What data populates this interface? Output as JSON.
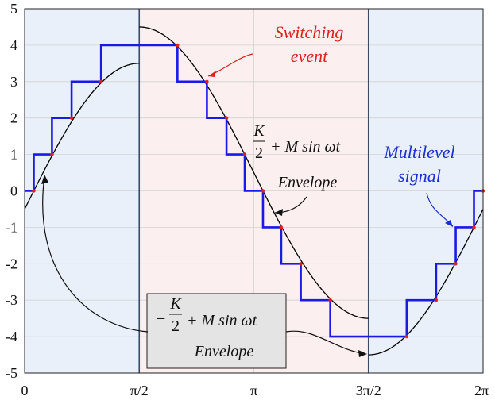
{
  "chart_data": {
    "type": "line",
    "title": "",
    "xlabel": "",
    "ylabel": "",
    "xlim": [
      0,
      6.2832
    ],
    "ylim": [
      -5,
      5
    ],
    "xticks": [
      {
        "value": 0,
        "label": "0"
      },
      {
        "value": 1.5708,
        "label": "π/2"
      },
      {
        "value": 3.1416,
        "label": "π"
      },
      {
        "value": 4.7124,
        "label": "3π/2"
      },
      {
        "value": 6.2832,
        "label": "2π"
      }
    ],
    "yticks": [
      5,
      4,
      3,
      2,
      1,
      0,
      -1,
      -2,
      -3,
      -4,
      -5
    ],
    "ytick_labels": [
      "5",
      "4",
      "3",
      "2",
      "1",
      "0",
      "-1",
      "-2",
      "-3",
      "-4",
      "-5"
    ],
    "grid": true,
    "regions": [
      {
        "x0": 0,
        "x1": 1.5708,
        "color": "#eaf0f9"
      },
      {
        "x0": 1.5708,
        "x1": 4.7124,
        "color": "#fbefef"
      },
      {
        "x0": 4.7124,
        "x1": 6.2832,
        "color": "#eaf0f9"
      }
    ],
    "envelope": {
      "color": "#000000",
      "segments": [
        {
          "x0": 0,
          "x1": 1.5708,
          "offset": -0.5,
          "amplitude": 4
        },
        {
          "x0": 1.5708,
          "x1": 4.7124,
          "offset": 0.5,
          "amplitude": 4
        },
        {
          "x0": 4.7124,
          "x1": 6.2832,
          "offset": -0.5,
          "amplitude": 4
        }
      ]
    },
    "step_signal": {
      "color": "#1a1ae6",
      "points": [
        [
          0,
          0
        ],
        [
          0.125,
          0
        ],
        [
          0.125,
          1
        ],
        [
          0.375,
          1
        ],
        [
          0.375,
          2
        ],
        [
          0.6435,
          2
        ],
        [
          0.6435,
          3
        ],
        [
          1.0472,
          3
        ],
        [
          1.0472,
          4
        ],
        [
          2.0944,
          4
        ],
        [
          2.0944,
          3
        ],
        [
          2.4981,
          3
        ],
        [
          2.4981,
          2
        ],
        [
          2.7667,
          2
        ],
        [
          2.7667,
          1
        ],
        [
          3.0165,
          1
        ],
        [
          3.0165,
          0
        ],
        [
          3.2667,
          0
        ],
        [
          3.2667,
          -1
        ],
        [
          3.5165,
          -1
        ],
        [
          3.5165,
          -2
        ],
        [
          3.7851,
          -2
        ],
        [
          3.7851,
          -3
        ],
        [
          4.1888,
          -3
        ],
        [
          4.1888,
          -4
        ],
        [
          5.236,
          -4
        ],
        [
          5.236,
          -3
        ],
        [
          5.6397,
          -3
        ],
        [
          5.6397,
          -2
        ],
        [
          5.9083,
          -2
        ],
        [
          5.9083,
          -1
        ],
        [
          6.1581,
          -1
        ],
        [
          6.1581,
          0
        ],
        [
          6.2832,
          0
        ]
      ]
    },
    "switching_points": {
      "color": "#e0201a",
      "points": [
        [
          0.125,
          0
        ],
        [
          0.375,
          1
        ],
        [
          0.6435,
          2
        ],
        [
          1.0472,
          3
        ],
        [
          2.0944,
          4
        ],
        [
          2.4981,
          3
        ],
        [
          2.7667,
          2
        ],
        [
          3.0165,
          1
        ],
        [
          3.2667,
          0
        ],
        [
          3.5165,
          -1
        ],
        [
          3.7851,
          -2
        ],
        [
          4.1888,
          -3
        ],
        [
          5.236,
          -4
        ],
        [
          5.6397,
          -3
        ],
        [
          5.9083,
          -2
        ],
        [
          6.1581,
          -1
        ],
        [
          6.2832,
          0
        ]
      ]
    },
    "annotations": {
      "switching_line1": "Switching",
      "switching_line2": "event",
      "multilevel_line1": "Multilevel",
      "multilevel_line2": "signal",
      "upper_env_frac_num": "K",
      "upper_env_frac_den": "2",
      "upper_env_rest": "+ M sin ωt",
      "upper_env_label": "Envelope",
      "lower_env_sign": "−",
      "lower_env_frac_num": "K",
      "lower_env_frac_den": "2",
      "lower_env_rest": "+ M sin ωt",
      "lower_env_label": "Envelope"
    }
  }
}
